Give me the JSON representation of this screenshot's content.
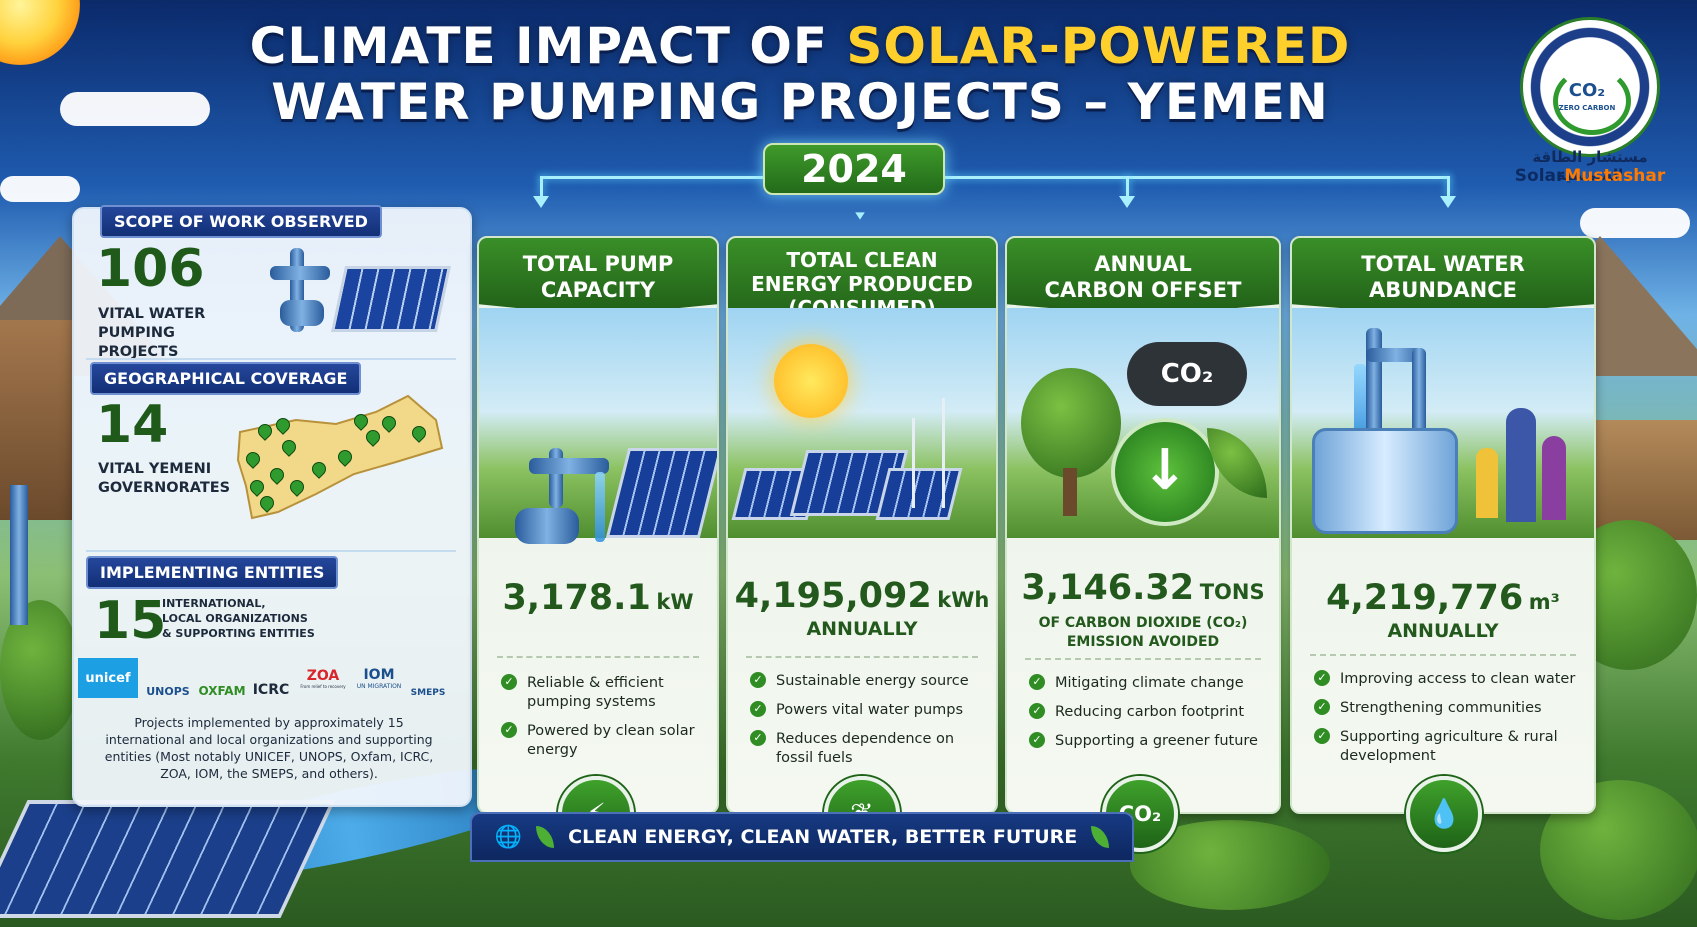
{
  "header": {
    "title_line1_a": "CLIMATE IMPACT OF ",
    "title_line1_b": "SOLAR-POWERED",
    "title_line2": "WATER PUMPING PROJECTS – YEMEN",
    "year": "2024"
  },
  "logo": {
    "co2": "CO₂",
    "zero": "ZERO CARBON",
    "arabic": "مستشار الطاقة الشمسية",
    "brand_a": "Solar",
    "brand_b": "Mustashar"
  },
  "left": {
    "scope": {
      "header": "SCOPE OF WORK OBSERVED",
      "number": "106",
      "label": "VITAL WATER PUMPING PROJECTS"
    },
    "geo": {
      "header": "GEOGRAPHICAL COVERAGE",
      "number": "14",
      "label": "VITAL YEMENI GOVERNORATES"
    },
    "entities": {
      "header": "IMPLEMENTING ENTITIES",
      "number": "15",
      "label_line1": "INTERNATIONAL,",
      "label_line2": "LOCAL ORGANIZATIONS",
      "label_line3": "& SUPPORTING ENTITIES",
      "logos": [
        "unicef",
        "UNOPS",
        "OXFAM",
        "ICRC",
        "ZOA",
        "IOM",
        "SMEPS"
      ],
      "logo_sub": {
        "zoa": "From relief to recovery",
        "iom": "UN MIGRATION"
      },
      "note": "Projects implemented by approximately 15 international and local organizations and supporting entities (Most notably UNICEF, UNOPS, Oxfam, ICRC, ZOA, IOM, the SMEPS, and others)."
    }
  },
  "cards": [
    {
      "title_line1": "TOTAL PUMP",
      "title_line2": "CAPACITY",
      "title_line3": "",
      "value": "3,178.1",
      "unit": "kW",
      "sub_line1": "",
      "sub_line2": "",
      "bullets": [
        "Reliable & efficient pumping systems",
        "Powered by clean solar energy"
      ],
      "badge_icon": "lightning-bolt-icon",
      "badge_text": ""
    },
    {
      "title_line1": "TOTAL CLEAN",
      "title_line2": "ENERGY PRODUCED",
      "title_line3": "(CONSUMED)",
      "value": "4,195,092",
      "unit": "kWh",
      "sub_line1": "ANNUALLY",
      "sub_line2": "",
      "bullets": [
        "Sustainable energy source",
        "Powers vital water pumps",
        "Reduces dependence on fossil fuels"
      ],
      "badge_icon": "leaves-icon",
      "badge_text": ""
    },
    {
      "title_line1": "ANNUAL",
      "title_line2": "CARBON OFFSET",
      "title_line3": "",
      "value": "3,146.32",
      "unit": "TONS",
      "sub_line1": "OF CARBON DIOXIDE (CO₂)",
      "sub_line2": "EMISSION AVOIDED",
      "bullets": [
        "Mitigating climate change",
        "Reducing carbon footprint",
        "Supporting a greener future"
      ],
      "badge_icon": "co2-icon",
      "badge_text": "CO₂"
    },
    {
      "title_line1": "TOTAL WATER",
      "title_line2": "ABUNDANCE",
      "title_line3": "",
      "value": "4,219,776",
      "unit": "m³",
      "sub_line1": "ANNUALLY",
      "sub_line2": "",
      "bullets": [
        "Improving access to clean water",
        "Strengthening communities",
        "Supporting agriculture & rural development"
      ],
      "badge_icon": "water-drop-icon",
      "badge_text": ""
    }
  ],
  "illustration_text": {
    "co2_cloud": "CO₂"
  },
  "footer": {
    "text": "CLEAN ENERGY, CLEAN WATER, BETTER FUTURE"
  },
  "colors": {
    "primary_green": "#23591c",
    "header_blue": "#122f76",
    "accent_yellow": "#ffd02b"
  }
}
